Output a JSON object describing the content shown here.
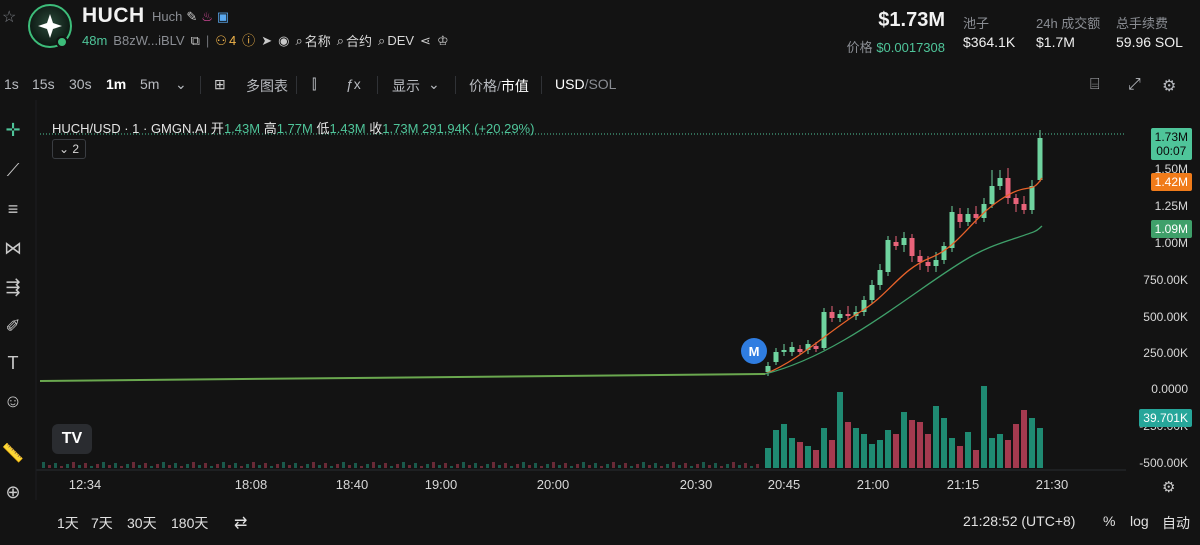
{
  "header": {
    "star_icon": "star-icon",
    "ticker": "HUCH",
    "name": "Huch",
    "age": "48m",
    "address": "B8zW...iBLV",
    "holders_count": "4",
    "links": {
      "name_label": "名称",
      "contract_label": "合约",
      "dev_label": "DEV"
    },
    "market_cap": "$1.73M",
    "price_label": "价格",
    "price_value": "$0.0017308",
    "stats": [
      {
        "label": "池子",
        "value": "$364.1K"
      },
      {
        "label": "24h 成交额",
        "value": "$1.7M"
      },
      {
        "label": "总手续费",
        "value": "59.96 SOL"
      }
    ]
  },
  "toolbar": {
    "intervals": [
      "1s",
      "15s",
      "30s",
      "1m",
      "5m"
    ],
    "active_interval": "1m",
    "multi_chart_label": "多图表",
    "display_label": "显示",
    "price_label": "价格",
    "mcap_label": "市值",
    "currency_usd": "USD",
    "currency_sol": "SOL"
  },
  "legend": {
    "symbol": "HUCH/USD · 1 · GMGN.AI",
    "open_label": "开",
    "open": "1.43M",
    "high_label": "高",
    "high": "1.77M",
    "low_label": "低",
    "low": "1.43M",
    "close_label": "收",
    "close": "1.73M",
    "volume": "291.94K",
    "change": "(+20.29%)",
    "indicator_count": "2"
  },
  "chart_data": {
    "type": "candlestick",
    "y_ticks": [
      "1.50M",
      "1.25M",
      "1.00M",
      "750.00K",
      "500.00K",
      "250.00K",
      "0.0000",
      "-250.00K",
      "-500.00K"
    ],
    "x_ticks": [
      "12:34",
      "18:08",
      "18:40",
      "19:00",
      "20:00",
      "20:30",
      "20:45",
      "21:00",
      "21:15",
      "21:30"
    ],
    "badges": [
      {
        "label": "1.73M",
        "sub": "00:07",
        "color": "#4fc59a"
      },
      {
        "label": "1.42M",
        "color": "#f07b1a"
      },
      {
        "label": "1.09M",
        "color": "#3fa06a"
      },
      {
        "label": "39.701K",
        "color": "#26a69a"
      }
    ],
    "colors": {
      "up": "#6fd39f",
      "down": "#e9637a",
      "ma_fast": "#e8622a",
      "ma_slow": "#3fa06a",
      "vol_up": "#1f8a72",
      "vol_down": "#a43a4f"
    },
    "marker": "M"
  },
  "tools": [
    "crosshair-icon",
    "trend-line-icon",
    "fib-icon",
    "pattern-icon",
    "prediction-icon",
    "brush-icon",
    "text-icon",
    "emoji-icon",
    "ruler-icon",
    "zoom-icon"
  ],
  "footer": {
    "ranges": [
      "1天",
      "7天",
      "30天",
      "180天"
    ],
    "time": "21:28:52 (UTC+8)",
    "percent": "%",
    "log": "log",
    "auto": "自动"
  }
}
